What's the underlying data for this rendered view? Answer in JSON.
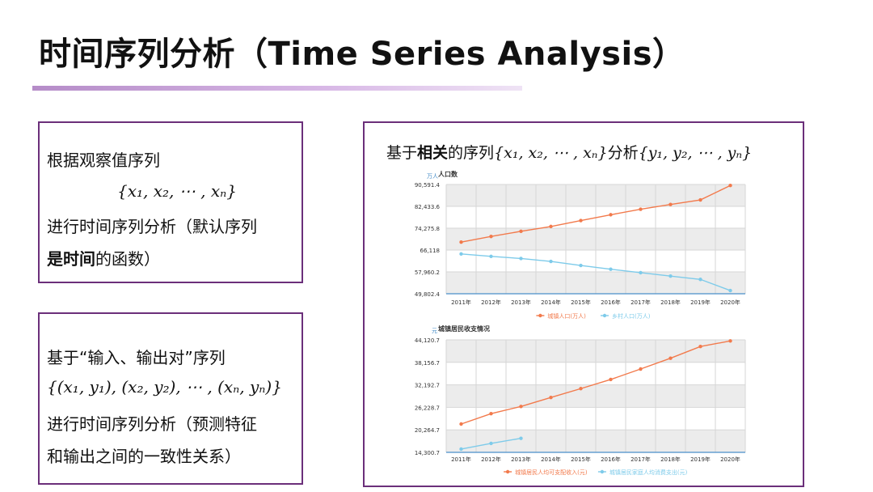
{
  "title": "时间序列分析（Time Series Analysis）",
  "box1": {
    "line1": "根据观察值序列",
    "formula": "{x₁, x₂, ⋯ , xₙ}",
    "line3": "进行时间序列分析（默认序列",
    "line4_bold": "是时间",
    "line4_rest": "的函数）"
  },
  "box2": {
    "line1": "基于“输入、输出对”序列",
    "formula": "{(x₁, y₁), (x₂, y₂), ⋯ , (xₙ, yₙ)}",
    "line3": "进行时间序列分析（预测特征",
    "line4": "和输出之间的一致性关系）"
  },
  "box3": {
    "heading_pre": "基于",
    "heading_bold": "相关",
    "heading_mid": "的序列",
    "heading_f1": "{x₁, x₂, ⋯ , xₙ}",
    "heading_post": "分析",
    "heading_f2": "{y₁, y₂, ⋯ , yₙ}"
  },
  "chart_data": [
    {
      "type": "line",
      "title": "人口数",
      "unit": "万人",
      "categories": [
        "2011年",
        "2012年",
        "2013年",
        "2014年",
        "2015年",
        "2016年",
        "2017年",
        "2018年",
        "2019年",
        "2020年"
      ],
      "ytick_labels": [
        "90,591.4",
        "82,433.6",
        "74,275.8",
        "66,118",
        "57,960.2",
        "49,802.4"
      ],
      "ylim": [
        49802.4,
        90591.4
      ],
      "grid": true,
      "legend_position": "bottom",
      "series": [
        {
          "name": "城镇人口(万人)",
          "color": "#f27a4c",
          "values": [
            69079,
            71182,
            73111,
            74916,
            77116,
            79298,
            81347,
            83137,
            84843,
            90220
          ]
        },
        {
          "name": "乡村人口(万人)",
          "color": "#7ecbea",
          "values": [
            64656,
            63747,
            62961,
            61866,
            60346,
            58973,
            57661,
            56401,
            55162,
            50992
          ]
        }
      ]
    },
    {
      "type": "line",
      "title": "城镇居民收支情况",
      "unit": "元",
      "categories": [
        "2011年",
        "2012年",
        "2013年",
        "2014年",
        "2015年",
        "2016年",
        "2017年",
        "2018年",
        "2019年",
        "2020年"
      ],
      "ytick_labels": [
        "44,120.7",
        "38,156.7",
        "32,192.7",
        "26,228.7",
        "20,264.7",
        "14,300.7"
      ],
      "ylim": [
        14300.7,
        44120.7
      ],
      "grid": true,
      "legend_position": "bottom",
      "series": [
        {
          "name": "城镇居民人均可支配收入(元)",
          "color": "#f27a4c",
          "values": [
            21810,
            24565,
            26467,
            28844,
            31195,
            33616,
            36396,
            39251,
            42359,
            43834
          ]
        },
        {
          "name": "城镇居民家庭人均消费支出(元)",
          "color": "#7ecbea",
          "values": [
            15161,
            16674,
            18023,
            null,
            null,
            null,
            null,
            null,
            null,
            null
          ]
        }
      ]
    }
  ]
}
